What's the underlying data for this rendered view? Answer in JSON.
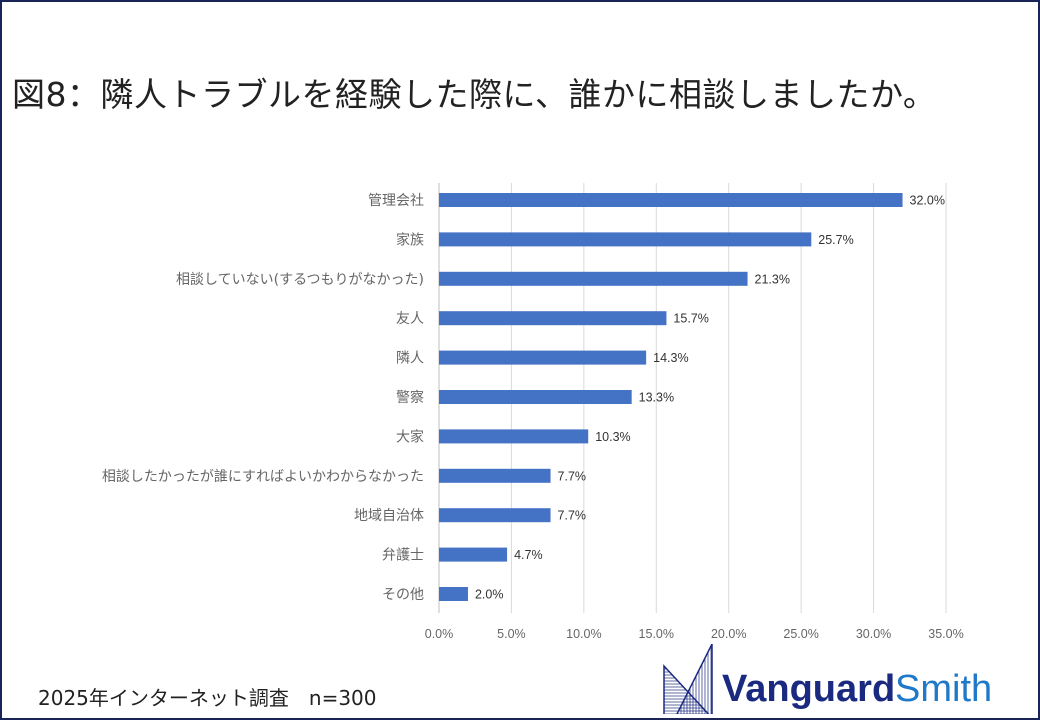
{
  "title": "図8：隣人トラブルを経験した際に、誰かに相談しましたか。",
  "footer": "2025年インターネット調査　n=300",
  "logo": {
    "primary": "Vanguard",
    "secondary": "Smith"
  },
  "colors": {
    "bar": "#4472c4",
    "frame": "#1a2456",
    "logo_primary": "#1a2a80",
    "logo_secondary": "#1e7ac8"
  },
  "chart_data": {
    "type": "bar",
    "orientation": "horizontal",
    "categories": [
      "管理会社",
      "家族",
      "相談していない(するつもりがなかった)",
      "友人",
      "隣人",
      "警察",
      "大家",
      "相談したかったが誰にすればよいかわからなかった",
      "地域自治体",
      "弁護士",
      "その他"
    ],
    "values": [
      32.0,
      25.7,
      21.3,
      15.7,
      14.3,
      13.3,
      10.3,
      7.7,
      7.7,
      4.7,
      2.0
    ],
    "data_labels": [
      "32.0%",
      "25.7%",
      "21.3%",
      "15.7%",
      "14.3%",
      "13.3%",
      "10.3%",
      "7.7%",
      "7.7%",
      "4.7%",
      "2.0%"
    ],
    "xlim": [
      0,
      35
    ],
    "xticks": [
      "0.0%",
      "5.0%",
      "10.0%",
      "15.0%",
      "20.0%",
      "25.0%",
      "30.0%",
      "35.0%"
    ],
    "grid": true,
    "legend": "none"
  }
}
